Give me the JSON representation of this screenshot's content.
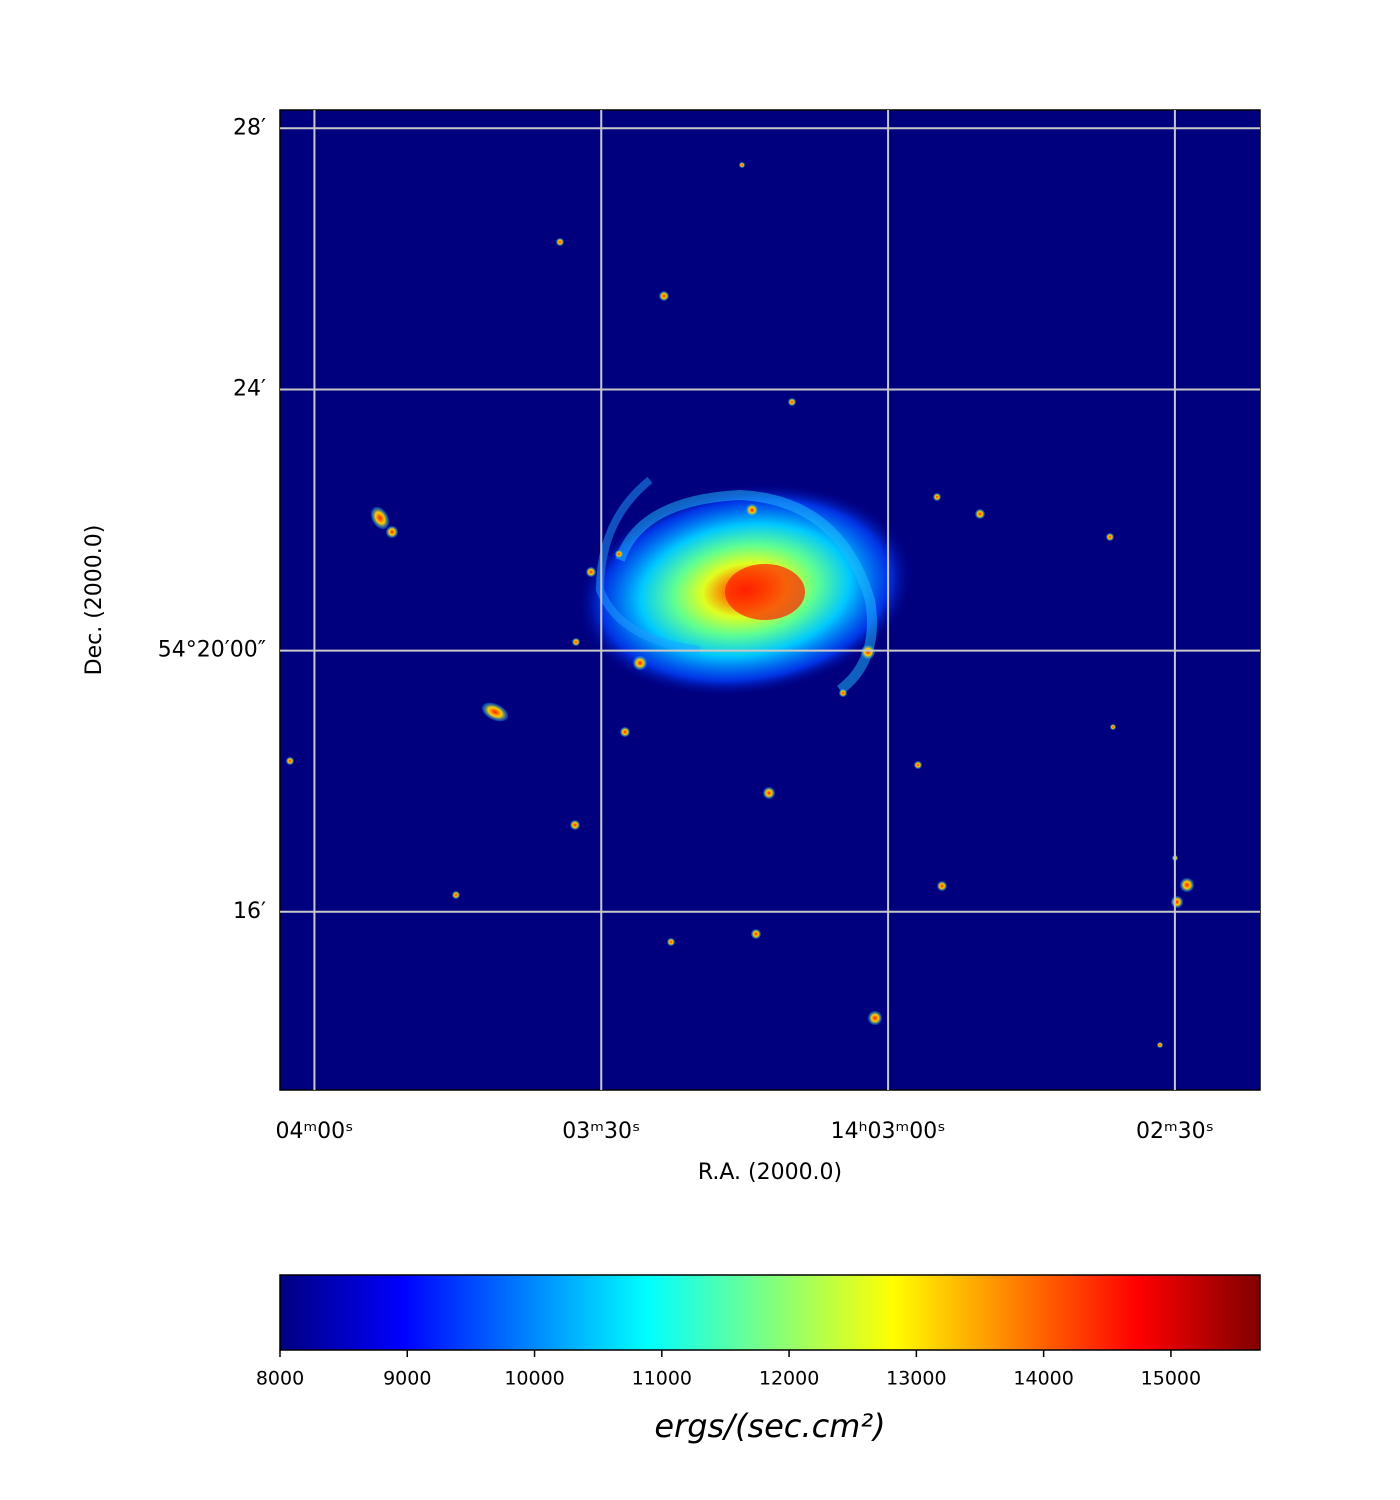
{
  "chart_data": {
    "type": "image",
    "xlabel": "R.A. (2000.0)",
    "ylabel": "Dec. (2000.0)",
    "xlim": [
      243.6,
      141.1
    ],
    "xticks": [
      {
        "value": 240,
        "label": "04ᵐ00ˢ"
      },
      {
        "value": 210,
        "label": "03ᵐ30ˢ"
      },
      {
        "value": 180,
        "label": "14ʰ03ᵐ00ˢ"
      },
      {
        "value": 150,
        "label": "02ᵐ30ˢ"
      }
    ],
    "ylim": [
      13.27,
      28.28
    ],
    "yticks": [
      {
        "value": 28,
        "label": "28′"
      },
      {
        "value": 24,
        "label": "24′"
      },
      {
        "value": 20,
        "label": "54°20′00″"
      },
      {
        "value": 16,
        "label": "16′"
      }
    ],
    "grid": true,
    "colormap": "jet",
    "clim": [
      8000,
      15700
    ],
    "cticks": [
      8000,
      9000,
      10000,
      11000,
      12000,
      13000,
      14000,
      15000
    ],
    "clabel": "ergs/(sec.cm²)"
  }
}
